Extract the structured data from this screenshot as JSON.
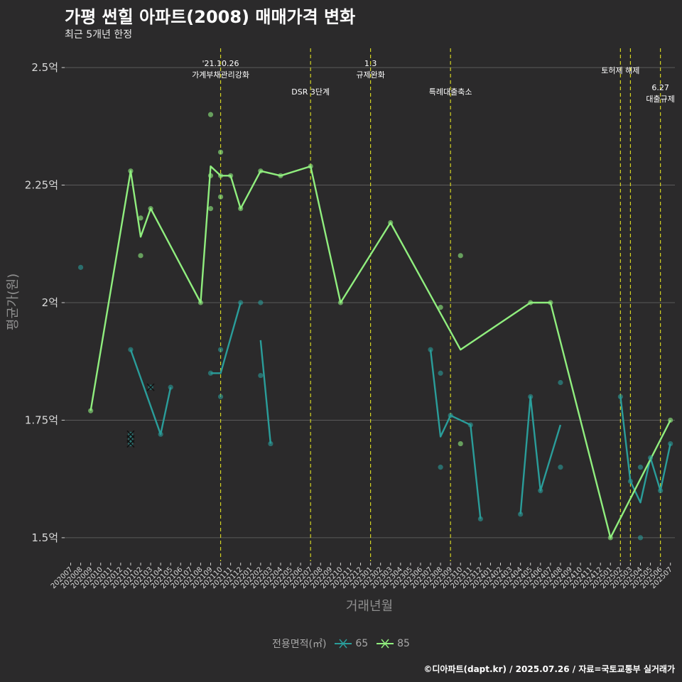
{
  "chart_data": {
    "type": "line",
    "title": "가평 썬힐 아파트(2008) 매매가격 변화",
    "subtitle": "최근 5개년 한정",
    "xlabel": "거래년월",
    "ylabel": "평균가(원)",
    "ylim": [
      1.45,
      2.55
    ],
    "y_ticks": [
      1.5,
      1.75,
      2.0,
      2.25,
      2.5
    ],
    "y_tick_labels": [
      "1.5억",
      "1.75억",
      "2억",
      "2.25억",
      "2.5억"
    ],
    "grid": true,
    "legend_position": "bottom",
    "legend_title": "전용면적(㎡)",
    "categories": [
      "202007",
      "202008",
      "202009",
      "202010",
      "202011",
      "202012",
      "202101",
      "202102",
      "202103",
      "202104",
      "202105",
      "202106",
      "202107",
      "202108",
      "202109",
      "202110",
      "202111",
      "202112",
      "202201",
      "202202",
      "202203",
      "202204",
      "202205",
      "202206",
      "202207",
      "202208",
      "202209",
      "202210",
      "202211",
      "202212",
      "202301",
      "202302",
      "202303",
      "202304",
      "202305",
      "202306",
      "202307",
      "202308",
      "202309",
      "202310",
      "202311",
      "202312",
      "202401",
      "202402",
      "202403",
      "202404",
      "202405",
      "202406",
      "202407",
      "202408",
      "202409",
      "202410",
      "202411",
      "202412",
      "202501",
      "202502",
      "202503",
      "202504",
      "202505",
      "202506",
      "202507"
    ],
    "series": [
      {
        "name": "65",
        "color": "#2a9d9a",
        "segments": [
          [
            [
              "202101",
              1.9
            ],
            [
              "202104",
              1.72
            ],
            [
              "202105",
              1.82
            ]
          ],
          [
            [
              "202109",
              1.85
            ],
            [
              "202110",
              1.85
            ],
            [
              "202112",
              2.0
            ]
          ],
          [
            [
              "202202",
              1.92
            ],
            [
              "202203",
              1.7
            ]
          ],
          [
            [
              "202307",
              1.9
            ],
            [
              "202308",
              1.715
            ],
            [
              "202309",
              1.76
            ],
            [
              "202311",
              1.74
            ],
            [
              "202312",
              1.54
            ]
          ],
          [
            [
              "202404",
              1.55
            ],
            [
              "202405",
              1.8
            ],
            [
              "202406",
              1.6
            ],
            [
              "202408",
              1.74
            ]
          ],
          [
            [
              "202502",
              1.8
            ],
            [
              "202503",
              1.62
            ],
            [
              "202504",
              1.575
            ],
            [
              "202505",
              1.67
            ],
            [
              "202506",
              1.6
            ],
            [
              "202507",
              1.7
            ]
          ]
        ],
        "points": [
          [
            "202008",
            2.075
          ],
          [
            "202101",
            1.9
          ],
          [
            "202104",
            1.72
          ],
          [
            "202105",
            1.82
          ],
          [
            "202109",
            1.85
          ],
          [
            "202110",
            1.9
          ],
          [
            "202110",
            1.8
          ],
          [
            "202112",
            2.0
          ],
          [
            "202202",
            2.0
          ],
          [
            "202202",
            1.845
          ],
          [
            "202203",
            1.7
          ],
          [
            "202307",
            1.9
          ],
          [
            "202308",
            1.85
          ],
          [
            "202308",
            1.65
          ],
          [
            "202309",
            1.76
          ],
          [
            "202311",
            1.74
          ],
          [
            "202312",
            1.54
          ],
          [
            "202404",
            1.55
          ],
          [
            "202405",
            1.8
          ],
          [
            "202406",
            1.6
          ],
          [
            "202408",
            1.83
          ],
          [
            "202408",
            1.65
          ],
          [
            "202502",
            1.8
          ],
          [
            "202503",
            1.62
          ],
          [
            "202504",
            1.65
          ],
          [
            "202504",
            1.5
          ],
          [
            "202505",
            1.67
          ],
          [
            "202506",
            1.6
          ],
          [
            "202507",
            1.7
          ]
        ],
        "cancelled": [
          [
            "202101",
            1.72
          ],
          [
            "202101",
            1.71
          ],
          [
            "202101",
            1.7
          ],
          [
            "202103",
            1.82
          ]
        ]
      },
      {
        "name": "85",
        "color": "#90ee7e",
        "segments": [
          [
            [
              "202009",
              1.77
            ],
            [
              "202101",
              2.28
            ],
            [
              "202102",
              2.14
            ],
            [
              "202103",
              2.2
            ],
            [
              "202108",
              2.0
            ],
            [
              "202109",
              2.29
            ],
            [
              "202110",
              2.27
            ],
            [
              "202111",
              2.27
            ],
            [
              "202112",
              2.2
            ],
            [
              "202202",
              2.28
            ],
            [
              "202204",
              2.27
            ],
            [
              "202207",
              2.29
            ],
            [
              "202210",
              2.0
            ],
            [
              "202303",
              2.17
            ],
            [
              "202310",
              1.9
            ],
            [
              "202405",
              2.0
            ],
            [
              "202407",
              2.0
            ],
            [
              "202501",
              1.5
            ],
            [
              "202507",
              1.75
            ]
          ]
        ],
        "points": [
          [
            "202009",
            1.77
          ],
          [
            "202101",
            2.28
          ],
          [
            "202102",
            2.18
          ],
          [
            "202102",
            2.1
          ],
          [
            "202103",
            2.2
          ],
          [
            "202108",
            2.0
          ],
          [
            "202109",
            2.4
          ],
          [
            "202109",
            2.27
          ],
          [
            "202109",
            2.2
          ],
          [
            "202110",
            2.32
          ],
          [
            "202110",
            2.27
          ],
          [
            "202110",
            2.225
          ],
          [
            "202111",
            2.27
          ],
          [
            "202112",
            2.2
          ],
          [
            "202202",
            2.28
          ],
          [
            "202204",
            2.27
          ],
          [
            "202207",
            2.29
          ],
          [
            "202210",
            2.0
          ],
          [
            "202303",
            2.17
          ],
          [
            "202308",
            1.99
          ],
          [
            "202310",
            2.1
          ],
          [
            "202310",
            1.7
          ],
          [
            "202405",
            2.0
          ],
          [
            "202407",
            2.0
          ],
          [
            "202501",
            1.5
          ],
          [
            "202507",
            1.75
          ]
        ],
        "cancelled": []
      }
    ],
    "events": [
      {
        "month": "202110",
        "label1": "'21.10.26",
        "label2": "가계부채관리강화",
        "row": 0
      },
      {
        "month": "202207",
        "label1": "DSR 3단계",
        "label2": "",
        "row": 1
      },
      {
        "month": "202301",
        "label1": "1.3",
        "label2": "규제완화",
        "row": 0
      },
      {
        "month": "202309",
        "label1": "특례대출축소",
        "label2": "",
        "row": 1
      },
      {
        "month": "202502",
        "label1": "토허제 해제",
        "label2": "",
        "row": 2
      },
      {
        "month": "202503",
        "label1": "",
        "label2": "",
        "row": 2
      },
      {
        "month": "202506",
        "label1": "6.27",
        "label2": "대출규제",
        "row": 3
      }
    ]
  },
  "footer": "©디아파트(dapt.kr) / 2025.07.26 / 자료=국토교통부 실거래가",
  "colors": {
    "background": "#2b2a2b",
    "grid": "#5a5a5a",
    "event_line": "#d4d422",
    "axis_text": "#d9d9d9",
    "axis_title": "#8f8f8f"
  }
}
